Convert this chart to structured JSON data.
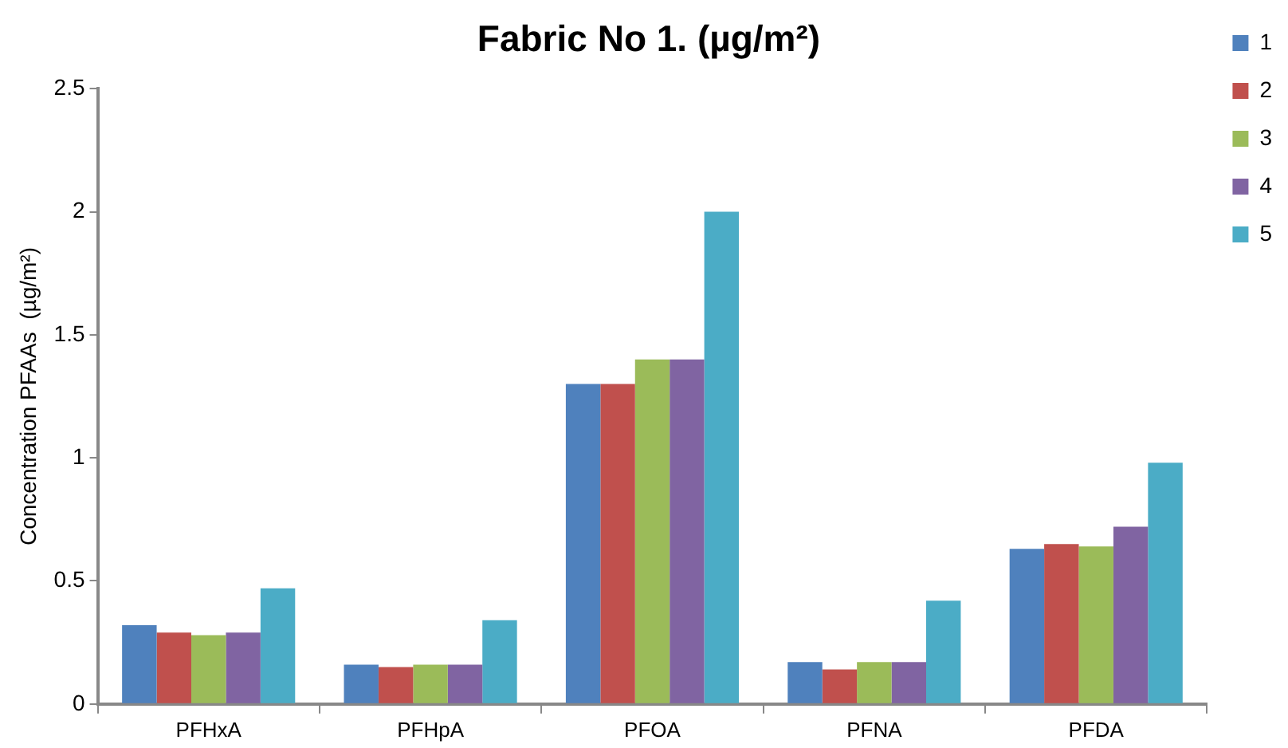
{
  "chart_data": {
    "type": "bar",
    "title": "Fabric No 1. (µg/m²)",
    "ylabel": "Concentration PFAAs  (µg/m²)",
    "categories": [
      "PFHxA",
      "PFHpA",
      "PFOA",
      "PFNA",
      "PFDA"
    ],
    "series": [
      {
        "name": "1",
        "color": "#4f81bd",
        "values": [
          0.32,
          0.16,
          1.3,
          0.17,
          0.63
        ]
      },
      {
        "name": "2",
        "color": "#c0504d",
        "values": [
          0.29,
          0.15,
          1.3,
          0.14,
          0.65
        ]
      },
      {
        "name": "3",
        "color": "#9bbb59",
        "values": [
          0.28,
          0.16,
          1.4,
          0.17,
          0.64
        ]
      },
      {
        "name": "4",
        "color": "#8064a2",
        "values": [
          0.29,
          0.16,
          1.4,
          0.17,
          0.72
        ]
      },
      {
        "name": "5",
        "color": "#4bacc6",
        "values": [
          0.47,
          0.34,
          2.0,
          0.42,
          0.98
        ]
      }
    ],
    "ylim": [
      0,
      2.5
    ],
    "yticks": [
      0,
      0.5,
      1,
      1.5,
      2,
      2.5
    ],
    "grid": false,
    "legend": "right"
  }
}
